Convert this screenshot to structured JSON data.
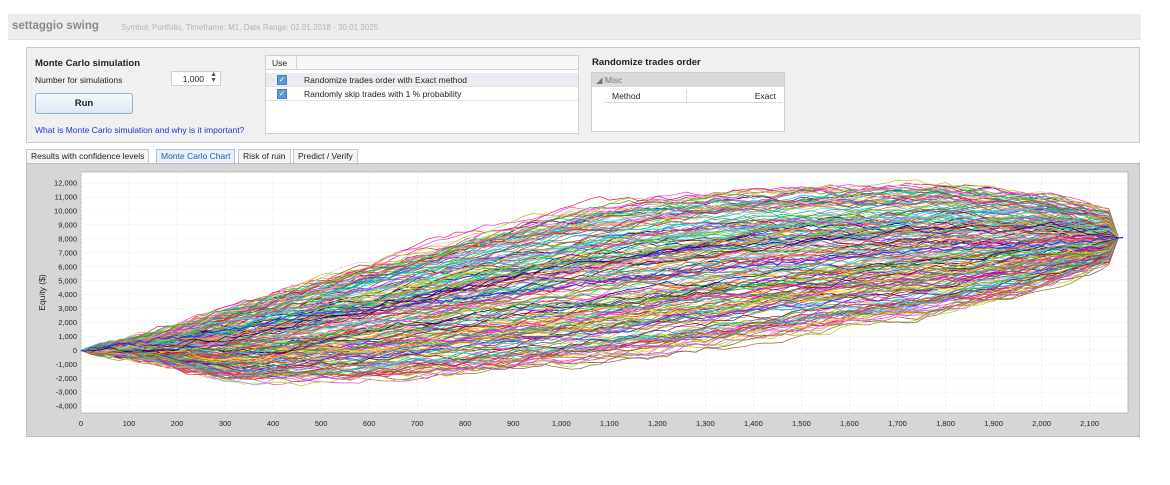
{
  "header": {
    "title": "settaggio swing",
    "meta": "Symbol: Portfolio, Timeframe: M1, Date Range: 02.01.2018 - 30.01.2025"
  },
  "monte_carlo": {
    "title": "Monte Carlo simulation",
    "simulations_label": "Number for simulations",
    "simulations_value": "1,000",
    "run_label": "Run",
    "help_link": "What is Monte Carlo simulation and why is it important?"
  },
  "options_table": {
    "header_use": "Use",
    "rows": [
      {
        "checked": true,
        "label": "Randomize trades order with Exact method"
      },
      {
        "checked": true,
        "label": "Randomly skip trades with 1 % probability"
      }
    ]
  },
  "randomize": {
    "title": "Randomize trades order",
    "group_label": "Misc",
    "method_label": "Method",
    "method_value": "Exact"
  },
  "tabs": [
    {
      "label": "Results with confidence levels",
      "active": false
    },
    {
      "label": "Monte Carlo Chart",
      "active": true
    },
    {
      "label": "Risk of ruin",
      "active": false
    },
    {
      "label": "Predict / Verify",
      "active": false
    }
  ],
  "chart_data": {
    "type": "line",
    "title": "",
    "xlabel": "",
    "ylabel": "Equity ($)",
    "xlim": [
      0,
      2180
    ],
    "ylim": [
      -4500,
      12800
    ],
    "x_ticks": [
      0,
      100,
      200,
      300,
      400,
      500,
      600,
      700,
      800,
      900,
      1000,
      1100,
      1200,
      1300,
      1400,
      1500,
      1600,
      1700,
      1800,
      1900,
      2000,
      2100
    ],
    "x_tick_labels": [
      "0",
      "100",
      "200",
      "300",
      "400",
      "500",
      "600",
      "700",
      "800",
      "900",
      "1,000",
      "1,100",
      "1,200",
      "1,300",
      "1,400",
      "1,500",
      "1,600",
      "1,700",
      "1,800",
      "1,900",
      "2,000",
      "2,100"
    ],
    "y_ticks": [
      -4000,
      -3000,
      -2000,
      -1000,
      0,
      1000,
      2000,
      3000,
      4000,
      5000,
      6000,
      7000,
      8000,
      9000,
      10000,
      11000,
      12000
    ],
    "y_tick_labels": [
      "-4,000",
      "-3,000",
      "-2,000",
      "-1,000",
      "0",
      "1,000",
      "2,000",
      "3,000",
      "4,000",
      "5,000",
      "6,000",
      "7,000",
      "8,000",
      "9,000",
      "10,000",
      "11,000",
      "12,000"
    ],
    "grid": true,
    "series_count": 1000,
    "num_points": 2170,
    "final_value": 8100,
    "series": [
      {
        "role": "original",
        "color": "#3a3adf",
        "x": [
          0,
          250,
          500,
          750,
          1000,
          1250,
          1500,
          1750,
          2000,
          2170
        ],
        "y": [
          0,
          1200,
          2600,
          3500,
          4600,
          5600,
          6400,
          7200,
          7600,
          8100
        ]
      },
      {
        "role": "upper",
        "color": "#22b14c",
        "x": [
          0,
          250,
          500,
          750,
          1000,
          1250,
          1500,
          1750,
          2000,
          2170
        ],
        "y": [
          0,
          3500,
          6000,
          8600,
          10600,
          11400,
          11700,
          11900,
          10800,
          8100
        ]
      },
      {
        "role": "lower",
        "color": "#9a7d1a",
        "x": [
          0,
          250,
          500,
          750,
          1000,
          1250,
          1500,
          1750,
          2000,
          2170
        ],
        "y": [
          0,
          -2600,
          -2000,
          -1600,
          -800,
          500,
          1800,
          3000,
          5200,
          8100
        ]
      }
    ],
    "palette": [
      "#e6194b",
      "#3cb44b",
      "#ffd21f",
      "#4363d8",
      "#f58231",
      "#911eb4",
      "#42d4f4",
      "#f032e6",
      "#9ad62a",
      "#fabed4",
      "#1ab3a6",
      "#b07cf0",
      "#9a6324",
      "#c9b458",
      "#800000",
      "#6fd08c",
      "#808000",
      "#ff7f7f",
      "#000075",
      "#2ca02c",
      "#d62728",
      "#17becf",
      "#ff00ff",
      "#00c0ff",
      "#8c564b",
      "#bcbd22",
      "#7f7f7f",
      "#ff9900",
      "#6600cc",
      "#00cc66"
    ]
  }
}
